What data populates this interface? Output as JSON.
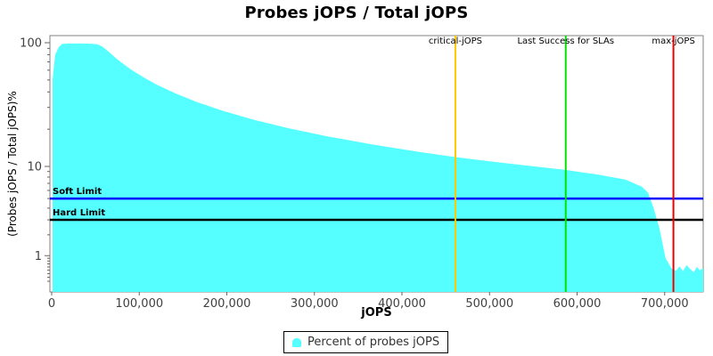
{
  "chart_data": {
    "type": "area",
    "title": "Probes jOPS / Total jOPS",
    "xlabel": "jOPS",
    "ylabel": "(Probes jOPS / Total jOPS)%",
    "x_axis": {
      "ticks": [
        {
          "value": 0,
          "label": "0"
        },
        {
          "value": 100000,
          "label": "100,000"
        },
        {
          "value": 200000,
          "label": "200,000"
        },
        {
          "value": 300000,
          "label": "300,000"
        },
        {
          "value": 400000,
          "label": "400,000"
        },
        {
          "value": 500000,
          "label": "500,000"
        },
        {
          "value": 600000,
          "label": "600,000"
        },
        {
          "value": 700000,
          "label": "700,000"
        }
      ],
      "range": [
        0,
        744000
      ],
      "grid": false
    },
    "y_axis": {
      "scale": "log (JFreeChart adjusted-log below 10)",
      "ticks": [
        {
          "value": 100,
          "label": "100"
        },
        {
          "value": 10,
          "label": "10"
        },
        {
          "value": 1,
          "label": "1"
        }
      ],
      "range": [
        0,
        114
      ],
      "grid": false
    },
    "series": [
      {
        "name": "Percent of probes jOPS",
        "color": "#55FFFF",
        "points": [
          [
            1000,
            50
          ],
          [
            4000,
            80
          ],
          [
            8000,
            92
          ],
          [
            12000,
            98
          ],
          [
            20000,
            98.6
          ],
          [
            32000,
            98.6
          ],
          [
            45000,
            98.2
          ],
          [
            52000,
            97
          ],
          [
            58000,
            93
          ],
          [
            65000,
            84.6
          ],
          [
            75000,
            73.3
          ],
          [
            90000,
            61.1
          ],
          [
            105000,
            52.4
          ],
          [
            120000,
            45.8
          ],
          [
            140000,
            39.3
          ],
          [
            165000,
            33.3
          ],
          [
            195000,
            28.2
          ],
          [
            230000,
            23.9
          ],
          [
            270000,
            20.4
          ],
          [
            315000,
            17.5
          ],
          [
            365000,
            15.1
          ],
          [
            420000,
            13.1
          ],
          [
            461000,
            11.9
          ],
          [
            500000,
            11.0
          ],
          [
            540000,
            10.2
          ],
          [
            587000,
            9.3
          ],
          [
            625000,
            8.4
          ],
          [
            655000,
            7.6
          ],
          [
            674000,
            6.5
          ],
          [
            681000,
            5.7
          ],
          [
            687000,
            4.1
          ],
          [
            694000,
            2.4
          ],
          [
            701000,
            0.9
          ],
          [
            708000,
            0.55
          ],
          [
            713000,
            0.48
          ],
          [
            717000,
            0.62
          ],
          [
            721000,
            0.47
          ],
          [
            725000,
            0.66
          ],
          [
            729000,
            0.54
          ],
          [
            733000,
            0.44
          ],
          [
            737000,
            0.6
          ],
          [
            740000,
            0.5
          ],
          [
            744000,
            0.56
          ]
        ]
      }
    ],
    "vertical_markers": [
      {
        "label": "critical-jOPS",
        "value": 461000,
        "color": "#FFC800"
      },
      {
        "label": "Last Success for SLAs",
        "value": 587000,
        "color": "#00E400"
      },
      {
        "label": "max-jOPS",
        "value": 710000,
        "color": "#EE0000"
      }
    ],
    "horizontal_markers": [
      {
        "label": "Soft Limit",
        "value": 5,
        "color": "#0000FF"
      },
      {
        "label": "Hard Limit",
        "value": 3,
        "color": "#000000"
      }
    ],
    "legend": {
      "position": "bottom-center",
      "items": [
        {
          "label": "Percent of probes jOPS",
          "color": "#55FFFF"
        }
      ]
    }
  },
  "colors": {
    "background": "#FFFFFF",
    "plot_border": "#808080",
    "tick_mark": "#666666",
    "tick_label": "#404040",
    "marker_label": "#000000"
  }
}
